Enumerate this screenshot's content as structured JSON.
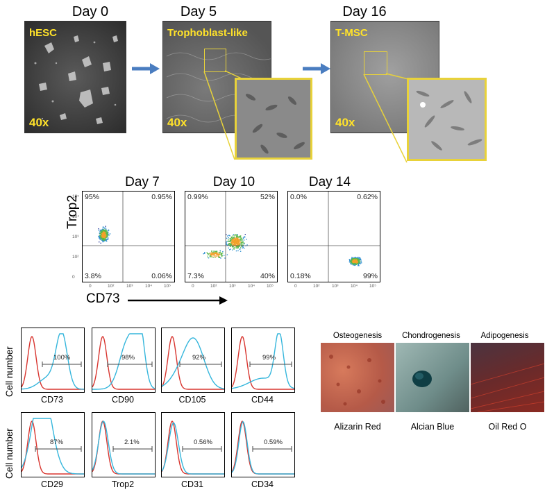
{
  "panel_a": {
    "days": [
      "Day 0",
      "Day 5",
      "Day 16"
    ],
    "image_labels": [
      "hESC",
      "Trophoblast-like",
      "T-MSC"
    ],
    "magnification": "40x"
  },
  "panel_b": {
    "days": [
      "Day 7",
      "Day 10",
      "Day 14"
    ],
    "y_label": "Trop2",
    "x_label": "CD73",
    "quadrants": [
      {
        "ul": "95%",
        "ur": "0.95%",
        "ll": "3.8%",
        "lr": "0.06%"
      },
      {
        "ul": "0.99%",
        "ur": "52%",
        "ll": "7.3%",
        "lr": "40%"
      },
      {
        "ul": "0.0%",
        "ur": "0.62%",
        "ll": "0.18%",
        "lr": "99%"
      }
    ],
    "ytick_labels": [
      "10⁵",
      "10⁴",
      "10³",
      "10²",
      "0"
    ],
    "xtick_labels": [
      "0",
      "10²",
      "10³",
      "10⁴",
      "10⁵"
    ]
  },
  "panel_c": {
    "y_label": "Cell number",
    "row1": [
      {
        "marker": "CD73",
        "pct": "100%"
      },
      {
        "marker": "CD90",
        "pct": "98%"
      },
      {
        "marker": "CD105",
        "pct": "92%"
      },
      {
        "marker": "CD44",
        "pct": "99%"
      }
    ],
    "row2": [
      {
        "marker": "CD29",
        "pct": "87%"
      },
      {
        "marker": "Trop2",
        "pct": "2.1%"
      },
      {
        "marker": "CD31",
        "pct": "0.56%"
      },
      {
        "marker": "CD34",
        "pct": "0.59%"
      }
    ],
    "colors": {
      "isotype": "#d8352f",
      "stained": "#35b6dc"
    }
  },
  "panel_d": {
    "titles": [
      "Osteogenesis",
      "Chondrogenesis",
      "Adipogenesis"
    ],
    "stains": [
      "Alizarin Red",
      "Alcian Blue",
      "Oil Red O"
    ]
  }
}
